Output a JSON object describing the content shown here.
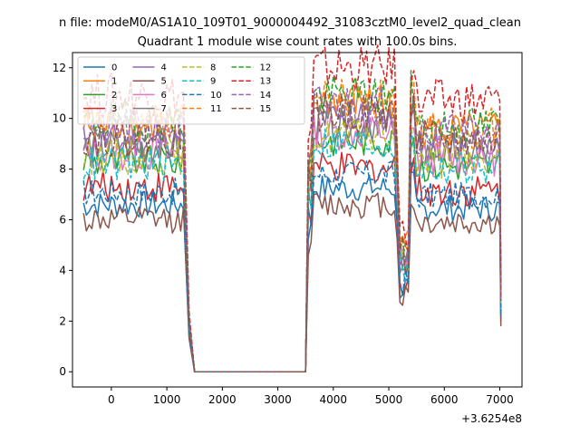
{
  "chart_data": {
    "type": "line",
    "suptitle": "n file: modeM0/AS1A10_109T01_9000004492_31083cztM0_level2_quad_clean",
    "title": "Quadrant 1 module wise count rates with 100.0s bins.",
    "xlabel": "",
    "ylabel": "",
    "x_offset_label": "+3.6254e8",
    "xlim": [
      -700,
      7400
    ],
    "ylim": [
      -0.6,
      12.6
    ],
    "x_ticks": [
      0,
      1000,
      2000,
      3000,
      4000,
      5000,
      6000,
      7000
    ],
    "x_tick_labels": [
      "0",
      "1000",
      "2000",
      "3000",
      "4000",
      "5000",
      "6000",
      "7000"
    ],
    "y_ticks": [
      0,
      2,
      4,
      6,
      8,
      10,
      12
    ],
    "y_tick_labels": [
      "0",
      "2",
      "4",
      "6",
      "8",
      "10",
      "12"
    ],
    "grid": false,
    "legend_position": "upper-left",
    "legend_columns": 4,
    "series": [
      {
        "name": "0",
        "color": "#1f77b4",
        "style": "solid",
        "level": 6.6,
        "amp": 0.3
      },
      {
        "name": "1",
        "color": "#ff7f0e",
        "style": "solid",
        "level": 9.7,
        "amp": 0.4
      },
      {
        "name": "2",
        "color": "#2ca02c",
        "style": "solid",
        "level": 8.3,
        "amp": 0.35
      },
      {
        "name": "3",
        "color": "#d62728",
        "style": "solid",
        "level": 7.3,
        "amp": 0.35
      },
      {
        "name": "4",
        "color": "#9467bd",
        "style": "solid",
        "level": 9.1,
        "amp": 0.4
      },
      {
        "name": "5",
        "color": "#8c564b",
        "style": "solid",
        "level": 6.0,
        "amp": 0.3
      },
      {
        "name": "6",
        "color": "#e377c2",
        "style": "solid",
        "level": 8.6,
        "amp": 0.4
      },
      {
        "name": "7",
        "color": "#7f7f7f",
        "style": "solid",
        "level": 8.9,
        "amp": 0.4
      },
      {
        "name": "8",
        "color": "#bcbd22",
        "style": "dashed",
        "level": 8.5,
        "amp": 0.4
      },
      {
        "name": "9",
        "color": "#17becf",
        "style": "dashed",
        "level": 8.2,
        "amp": 0.4
      },
      {
        "name": "10",
        "color": "#1f77b4",
        "style": "dashed",
        "level": 7.1,
        "amp": 0.3
      },
      {
        "name": "11",
        "color": "#ff7f0e",
        "style": "dashed",
        "level": 9.8,
        "amp": 0.45
      },
      {
        "name": "12",
        "color": "#2ca02c",
        "style": "dashed",
        "level": 9.9,
        "amp": 0.45
      },
      {
        "name": "13",
        "color": "#d62728",
        "style": "dashed",
        "level": 10.9,
        "amp": 0.5
      },
      {
        "name": "14",
        "color": "#9467bd",
        "style": "dashed",
        "level": 9.6,
        "amp": 0.45
      },
      {
        "name": "15",
        "color": "#8c564b",
        "style": "dashed",
        "level": 9.3,
        "amp": 0.45
      }
    ],
    "x_segments": {
      "first_start": -500,
      "first_end": 1300,
      "drop_end": 1500,
      "zero_end": 3500,
      "second_start": 3550,
      "second_end": 7000,
      "step": 50
    }
  }
}
